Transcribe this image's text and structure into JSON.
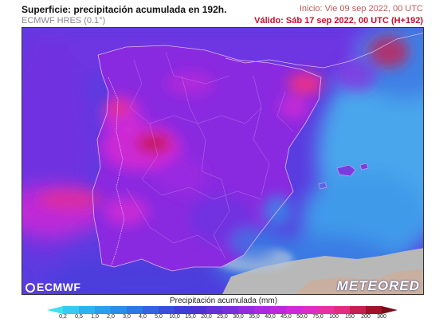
{
  "header": {
    "title": "Superficie: precipitación acumulada en 192h.",
    "model": "ECMWF HRES (0.1°)",
    "init": "Inicio: Vie 09 sep 2022, 00 UTC",
    "valid": "Válido: Sáb 17 sep 2022, 00 UTC (H+192)"
  },
  "logos": {
    "left": "ECMWF",
    "right": "METEORED"
  },
  "legend": {
    "title": "Precipitación acumulada (mm)",
    "ticks": [
      "0,2",
      "0,5",
      "1,0",
      "2,0",
      "3,0",
      "4,0",
      "5,0",
      "10,0",
      "15,0",
      "20,0",
      "25,0",
      "30,0",
      "35,0",
      "40,0",
      "45,0",
      "50,0",
      "75,0",
      "100",
      "150",
      "200",
      "300"
    ],
    "colors": [
      "#3fe0f0",
      "#33ccee",
      "#2ab4ec",
      "#2aa0ea",
      "#2c8ce8",
      "#2e78e6",
      "#3064e2",
      "#3650de",
      "#3e3cda",
      "#4e30d8",
      "#6430da",
      "#7c2ede",
      "#922ce0",
      "#a82ae2",
      "#bc28de",
      "#d02ad6",
      "#e02cc2",
      "#ea2ea4",
      "#e62a80",
      "#c81e52",
      "#a0122a",
      "#7a0a18"
    ]
  },
  "colors": {
    "sea_deep": "#1e64d8",
    "sea_light": "#4aa6ec",
    "land_purple": "#8a2ae0",
    "land_magenta": "#d42ad4",
    "land_pink": "#e8308a",
    "africa_land": "#b8b8b8"
  }
}
